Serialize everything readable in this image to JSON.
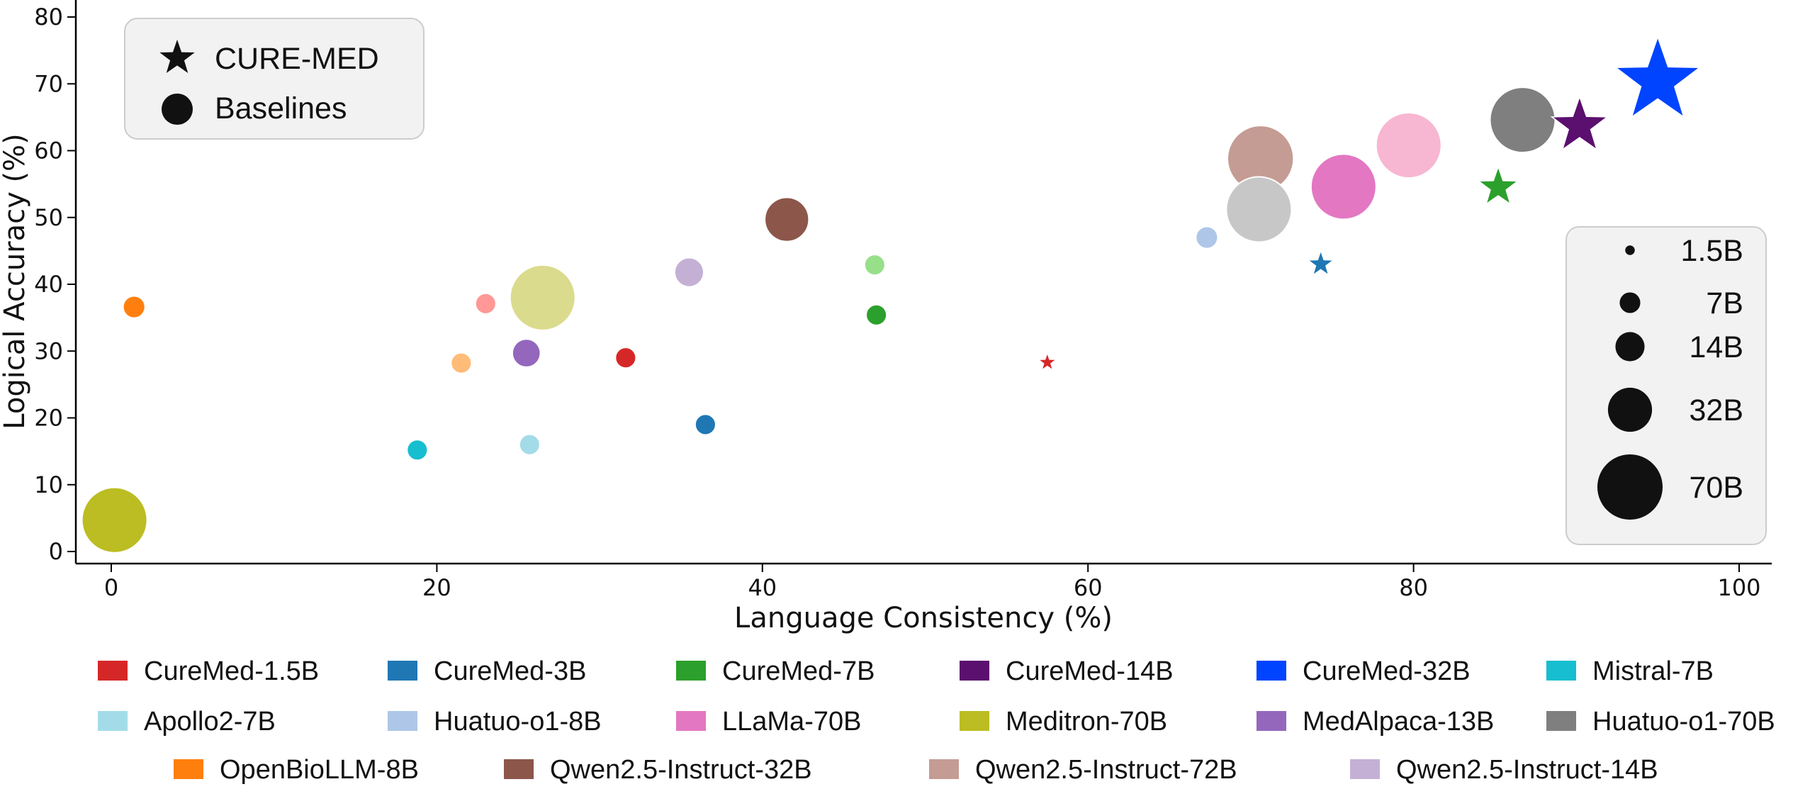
{
  "chart_data": {
    "type": "scatter",
    "title": "",
    "xlabel": "Language Consistency (%)",
    "ylabel": "Logical Accuracy (%)",
    "xlim": [
      -2,
      102
    ],
    "ylim": [
      -2,
      82
    ],
    "x_ticks": [
      "0",
      "20",
      "40",
      "60",
      "80",
      "100"
    ],
    "x_tick_values": [
      0,
      20,
      40,
      60,
      80,
      100
    ],
    "y_ticks": [
      "0",
      "10",
      "20",
      "30",
      "40",
      "50",
      "60",
      "70",
      "80"
    ],
    "y_tick_values": [
      0,
      10,
      20,
      30,
      40,
      50,
      60,
      70,
      80
    ],
    "grid": false,
    "marker_legend": {
      "placement": "top-left",
      "entries": [
        {
          "marker": "star",
          "label": "CURE-MED"
        },
        {
          "marker": "circle",
          "label": "Baselines"
        }
      ]
    },
    "size_legend": {
      "placement": "right",
      "entries": [
        {
          "label": "1.5B",
          "params": 1.5
        },
        {
          "label": "7B",
          "params": 7
        },
        {
          "label": "14B",
          "params": 14
        },
        {
          "label": "32B",
          "params": 32
        },
        {
          "label": "70B",
          "params": 70
        }
      ]
    },
    "series": [
      {
        "name": "CureMed-1.5B",
        "color": "#d62728",
        "marker": "star",
        "params": 1.5,
        "x": 57.5,
        "y": 28.3
      },
      {
        "name": "CureMed-3B",
        "color": "#1f77b4",
        "marker": "star",
        "params": 3,
        "x": 74.3,
        "y": 43.0
      },
      {
        "name": "CureMed-7B",
        "color": "#2ca02c",
        "marker": "star",
        "params": 7,
        "x": 85.2,
        "y": 54.5
      },
      {
        "name": "CureMed-14B",
        "color": "#5b0f6e",
        "marker": "star",
        "params": 14,
        "x": 90.2,
        "y": 63.7
      },
      {
        "name": "CureMed-32B",
        "color": "#0044ff",
        "marker": "star",
        "params": 32,
        "x": 95.0,
        "y": 70.4
      },
      {
        "name": "Mistral-7B",
        "color": "#17becf",
        "marker": "circle",
        "params": 7,
        "x": 18.8,
        "y": 15.2
      },
      {
        "name": "Apollo2-7B",
        "color": "#a3dce8",
        "marker": "circle",
        "params": 7,
        "x": 25.7,
        "y": 16.0
      },
      {
        "name": "Huatuo-o1-8B",
        "color": "#aec7e8",
        "marker": "circle",
        "params": 8,
        "x": 67.3,
        "y": 47.0
      },
      {
        "name": "LLaMa-70B",
        "color": "#e377c2",
        "marker": "circle",
        "params": 70,
        "x": 75.7,
        "y": 54.6
      },
      {
        "name": "Meditron-70B",
        "color": "#bcbd22",
        "marker": "circle",
        "params": 70,
        "x": 0.2,
        "y": 4.7
      },
      {
        "name": "MedAlpaca-13B",
        "color": "#9467bd",
        "marker": "circle",
        "params": 13,
        "x": 25.5,
        "y": 29.7
      },
      {
        "name": "Huatuo-o1-70B",
        "color": "#7f7f7f",
        "marker": "circle",
        "params": 70,
        "x": 86.7,
        "y": 64.6
      },
      {
        "name": "OpenBioLLM-8B",
        "color": "#ff7f0e",
        "marker": "circle",
        "params": 8,
        "x": 1.4,
        "y": 36.6
      },
      {
        "name": "Qwen2.5-Instruct-32B",
        "color": "#8c564b",
        "marker": "circle",
        "params": 32,
        "x": 41.5,
        "y": 49.7
      },
      {
        "name": "Qwen2.5-Instruct-72B",
        "color": "#c49c94",
        "marker": "circle",
        "params": 72,
        "x": 70.6,
        "y": 58.8
      },
      {
        "name": "Qwen2.5-Instruct-14B",
        "color": "#c5b0d5",
        "marker": "circle",
        "params": 14,
        "x": 35.5,
        "y": 41.8
      }
    ],
    "extra_baselines": [
      {
        "color": "#2ca02c",
        "params": 7,
        "x": 47.0,
        "y": 35.4
      },
      {
        "color": "#98df8a",
        "params": 7,
        "x": 46.9,
        "y": 42.9
      },
      {
        "color": "#1f77b4",
        "params": 7,
        "x": 36.5,
        "y": 19.0
      },
      {
        "color": "#d62728",
        "params": 7,
        "x": 31.6,
        "y": 29.0
      },
      {
        "color": "#ffbb78",
        "params": 7,
        "x": 21.5,
        "y": 28.2
      },
      {
        "color": "#ff9896",
        "params": 7,
        "x": 23.0,
        "y": 37.1
      },
      {
        "color": "#dbdb8d",
        "params": 70,
        "x": 26.5,
        "y": 38.0
      },
      {
        "color": "#f7b6d2",
        "params": 70,
        "x": 79.7,
        "y": 60.8
      },
      {
        "color": "#c7c7c7",
        "params": 70,
        "x": 70.5,
        "y": 51.2
      }
    ]
  }
}
